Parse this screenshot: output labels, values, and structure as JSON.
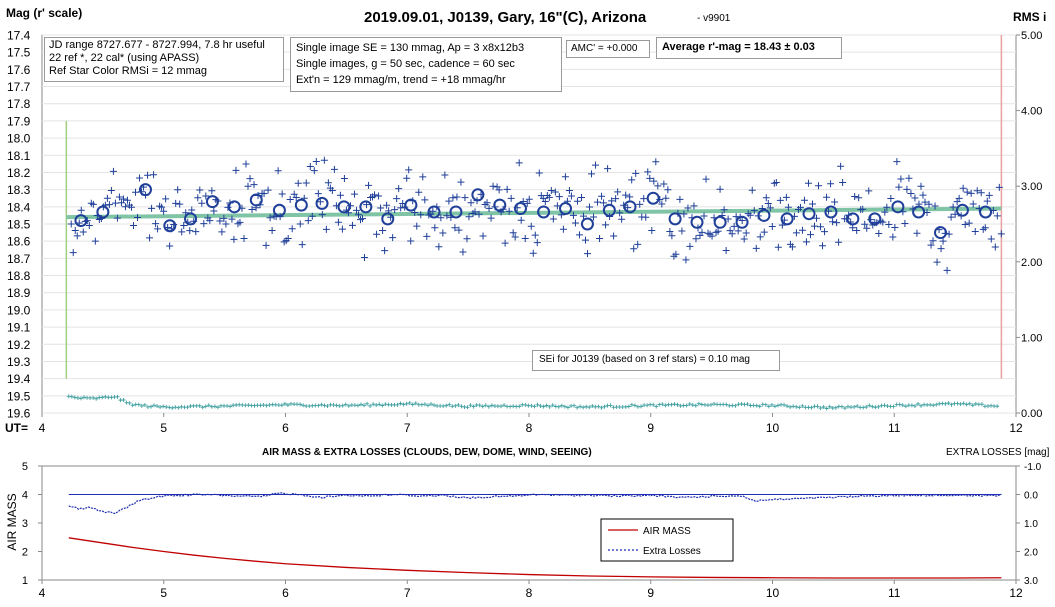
{
  "colors": {
    "marker": "#1f3f99",
    "fit_line": "#7fc4a4",
    "rms_series": "#3f9f9f",
    "air_mass": "#c00000",
    "extra_losses": "#1f2fb0",
    "start_line": "#9fcf7f",
    "end_line": "#e8a0a0"
  },
  "top_chart": {
    "title": "2019.09.01, J0139, Gary, 16\"(C), Arizona",
    "version": "- v9901",
    "ylabel_left": "Mag (r' scale)",
    "ylabel_right": "RMS i",
    "xlabel": "UT=",
    "info_box": [
      "JD range 8727.677 - 8727.994, 7.8 hr useful",
      "22 ref *, 22 cal* (using APASS)",
      "Ref Star Color RMSi = 12 mmag"
    ],
    "single_box": [
      "Single image SE = 130 mmag, Ap = 3 x8x12b3",
      "Single images, g = 50 sec, cadence = 60 sec",
      "Ext'n = 129 mmag/m, trend = +18 mmag/hr"
    ],
    "amc": "AMC' = +0.000",
    "average": "Average r'-mag =  18.43 ± 0.03",
    "sei": "SEi for J0139 (based on 3 ref stars) = 0.10 mag"
  },
  "bottom_chart": {
    "title": "AIR MASS & EXTRA LOSSES (CLOUDS, DEW, DOME, WIND, SEEING)",
    "ylabel_left": "AIR MASS",
    "ylabel_right": "EXTRA LOSSES [mag]",
    "legend": [
      "AIR MASS",
      "Extra Losses"
    ]
  },
  "chart_data": [
    {
      "type": "scatter",
      "title": "2019.09.01, J0139, Gary, 16\"(C), Arizona",
      "xlabel": "UT=",
      "ylabel": "Mag (r' scale)",
      "ylabel_right": "RMS i",
      "x_range": [
        4,
        12
      ],
      "y_range": [
        19.6,
        17.4
      ],
      "y_inverted": true,
      "x_ticks": [
        4,
        5,
        6,
        7,
        8,
        9,
        10,
        11,
        12
      ],
      "y_ticks": [
        17.4,
        17.5,
        17.6,
        17.7,
        17.8,
        17.9,
        18.0,
        18.1,
        18.2,
        18.3,
        18.4,
        18.5,
        18.6,
        18.7,
        18.8,
        18.9,
        19.0,
        19.1,
        19.2,
        19.3,
        19.4,
        19.5,
        19.6
      ],
      "y_right_range": [
        0,
        5
      ],
      "y_right_ticks": [
        "0.00",
        "1.00",
        "2.00",
        "3.00",
        "4.00",
        "5.00"
      ],
      "start_time": 4.2,
      "end_time": 11.88,
      "average_mag": 18.43,
      "series": [
        {
          "name": "averaged",
          "marker": "circle",
          "x": [
            4.32,
            4.5,
            4.85,
            5.05,
            5.22,
            5.4,
            5.58,
            5.76,
            5.95,
            6.13,
            6.3,
            6.48,
            6.66,
            6.84,
            7.03,
            7.22,
            7.4,
            7.58,
            7.76,
            7.93,
            8.12,
            8.3,
            8.48,
            8.66,
            8.83,
            9.02,
            9.2,
            9.38,
            9.57,
            9.75,
            9.93,
            10.12,
            10.3,
            10.48,
            10.66,
            10.84,
            11.03,
            11.2,
            11.38,
            11.56,
            11.75
          ],
          "y": [
            18.48,
            18.43,
            18.3,
            18.51,
            18.47,
            18.37,
            18.4,
            18.36,
            18.42,
            18.39,
            18.38,
            18.4,
            18.4,
            18.47,
            18.39,
            18.43,
            18.43,
            18.33,
            18.39,
            18.41,
            18.43,
            18.41,
            18.5,
            18.42,
            18.4,
            18.35,
            18.47,
            18.49,
            18.49,
            18.49,
            18.45,
            18.47,
            18.44,
            18.43,
            18.47,
            18.47,
            18.4,
            18.43,
            18.55,
            18.42,
            18.43
          ]
        },
        {
          "name": "fit",
          "type": "line",
          "x": [
            4.2,
            11.88
          ],
          "y": [
            18.46,
            18.41
          ]
        },
        {
          "name": "rms",
          "axis": "right",
          "x": [
            4.2,
            4.3,
            4.4,
            4.5,
            4.6,
            4.7,
            4.8,
            5.0,
            5.5,
            6.0,
            6.5,
            7.0,
            7.5,
            8.0,
            8.5,
            9.0,
            9.5,
            10.0,
            10.5,
            11.0,
            11.5,
            11.88
          ],
          "y": [
            0.22,
            0.2,
            0.19,
            0.2,
            0.22,
            0.13,
            0.1,
            0.08,
            0.09,
            0.11,
            0.1,
            0.12,
            0.09,
            0.1,
            0.08,
            0.1,
            0.11,
            0.1,
            0.07,
            0.1,
            0.12,
            0.09
          ]
        }
      ]
    },
    {
      "type": "line",
      "title": "AIR MASS & EXTRA LOSSES (CLOUDS, DEW, DOME, WIND, SEEING)",
      "ylabel": "AIR MASS",
      "ylabel_right": "EXTRA LOSSES [mag]",
      "x_range": [
        4,
        12
      ],
      "y_range": [
        1,
        5
      ],
      "x_ticks": [
        4,
        5,
        6,
        7,
        8,
        9,
        10,
        11,
        12
      ],
      "y_ticks": [
        1,
        2,
        3,
        4,
        5
      ],
      "y_right_range": [
        3.0,
        -1.0
      ],
      "y_right_ticks": [
        "-1.0",
        "0.0",
        "1.0",
        "2.0",
        "3.0"
      ],
      "legend": "center-right",
      "series": [
        {
          "name": "AIR MASS",
          "x": [
            4.22,
            4.5,
            4.75,
            5.0,
            5.25,
            5.5,
            5.75,
            6.0,
            6.5,
            7.0,
            7.5,
            8.0,
            8.5,
            9.0,
            9.5,
            10.0,
            10.5,
            11.0,
            11.5,
            11.88
          ],
          "y": [
            2.48,
            2.3,
            2.14,
            2.0,
            1.87,
            1.76,
            1.66,
            1.57,
            1.44,
            1.34,
            1.26,
            1.19,
            1.14,
            1.11,
            1.09,
            1.08,
            1.07,
            1.07,
            1.07,
            1.08
          ]
        },
        {
          "name": "Extra Losses",
          "axis": "right",
          "x": [
            4.22,
            4.3,
            4.4,
            4.5,
            4.6,
            4.65,
            4.7,
            4.8,
            5.0,
            5.3,
            5.6,
            5.8,
            5.95,
            6.1,
            6.3,
            6.5,
            6.7,
            6.9,
            7.1,
            7.3,
            7.5,
            7.7,
            7.9,
            8.1,
            8.3,
            8.5,
            8.7,
            8.9,
            9.0,
            9.2,
            9.4,
            9.6,
            9.75,
            9.85,
            10.0,
            10.2,
            10.5,
            10.8,
            11.1,
            11.4,
            11.7,
            11.88
          ],
          "y": [
            0.4,
            0.5,
            0.45,
            0.6,
            0.65,
            0.55,
            0.45,
            0.2,
            0.05,
            0.0,
            0.05,
            0.08,
            -0.05,
            0.0,
            0.1,
            0.02,
            0.05,
            0.0,
            0.05,
            0.03,
            0.12,
            0.08,
            0.05,
            0.0,
            0.03,
            0.02,
            0.05,
            0.05,
            0.02,
            0.1,
            0.08,
            0.05,
            0.05,
            0.22,
            0.18,
            0.15,
            0.1,
            0.05,
            0.03,
            0.02,
            0.05,
            0.02
          ]
        }
      ]
    }
  ]
}
